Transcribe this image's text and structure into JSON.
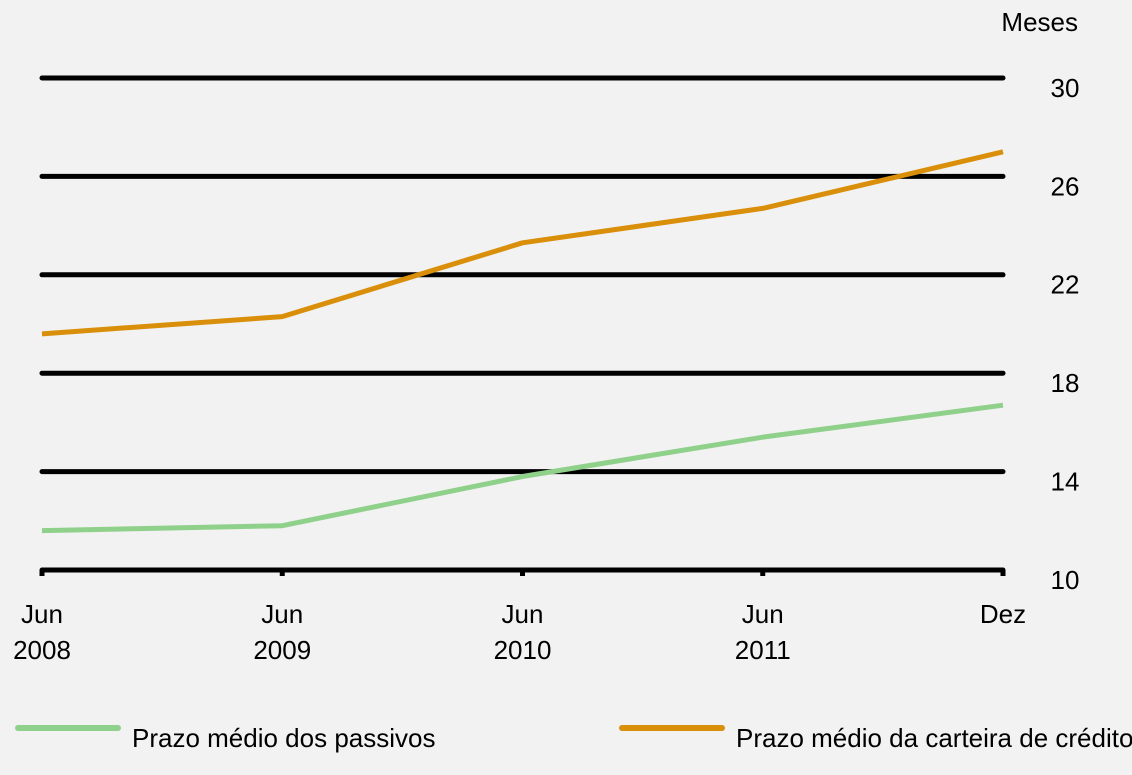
{
  "chart_data": {
    "type": "line",
    "y_unit_label": "Meses",
    "categories": [
      "Jun 2008",
      "Jun 2009",
      "Jun 2010",
      "Jun 2011",
      "Dez"
    ],
    "series": [
      {
        "name": "Prazo médio dos passivos",
        "color": "#8fd18a",
        "values": [
          11.6,
          11.8,
          13.8,
          15.4,
          16.7
        ]
      },
      {
        "name": "Prazo médio da carteira de crédito",
        "color": "#d98f0a",
        "values": [
          19.6,
          20.3,
          23.3,
          24.7,
          27.0
        ]
      }
    ],
    "ylim": [
      10,
      30
    ],
    "yticks": [
      10,
      14,
      18,
      22,
      26,
      30
    ],
    "grid": true,
    "y_axis_side": "right",
    "legend": "bottom"
  }
}
